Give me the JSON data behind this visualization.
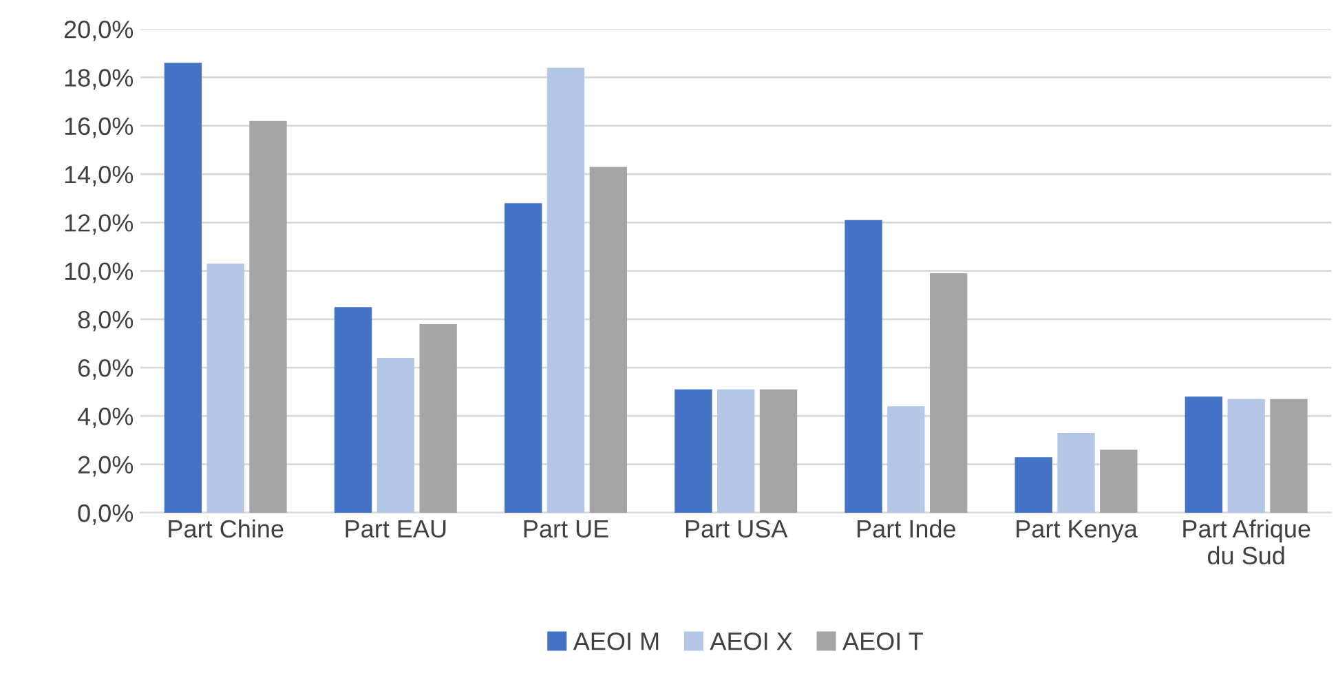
{
  "chart_data": {
    "type": "bar",
    "categories": [
      "Part Chine",
      "Part EAU",
      "Part UE",
      "Part USA",
      "Part Inde",
      "Part Kenya",
      "Part Afrique\ndu Sud"
    ],
    "series": [
      {
        "name": "AEOI M",
        "color": "#4472c4",
        "values": [
          18.6,
          8.5,
          12.8,
          5.1,
          12.1,
          2.3,
          4.8
        ]
      },
      {
        "name": "AEOI X",
        "color": "#b4c7e7",
        "values": [
          10.3,
          6.4,
          18.4,
          5.1,
          4.4,
          3.3,
          4.7
        ]
      },
      {
        "name": "AEOI T",
        "color": "#a5a5a5",
        "values": [
          16.2,
          7.8,
          14.3,
          5.1,
          9.9,
          2.6,
          4.7
        ]
      }
    ],
    "ylim": [
      0,
      20
    ],
    "yticks": [
      {
        "value": 0,
        "label": "0,0%"
      },
      {
        "value": 2,
        "label": "2,0%"
      },
      {
        "value": 4,
        "label": "4,0%"
      },
      {
        "value": 6,
        "label": "6,0%"
      },
      {
        "value": 8,
        "label": "8,0%"
      },
      {
        "value": 10,
        "label": "10,0%"
      },
      {
        "value": 12,
        "label": "12,0%"
      },
      {
        "value": 14,
        "label": "14,0%"
      },
      {
        "value": 16,
        "label": "16,0%"
      },
      {
        "value": 18,
        "label": "18,0%"
      },
      {
        "value": 20,
        "label": "20,0%"
      }
    ],
    "grid": "y",
    "legend": "bottom"
  }
}
